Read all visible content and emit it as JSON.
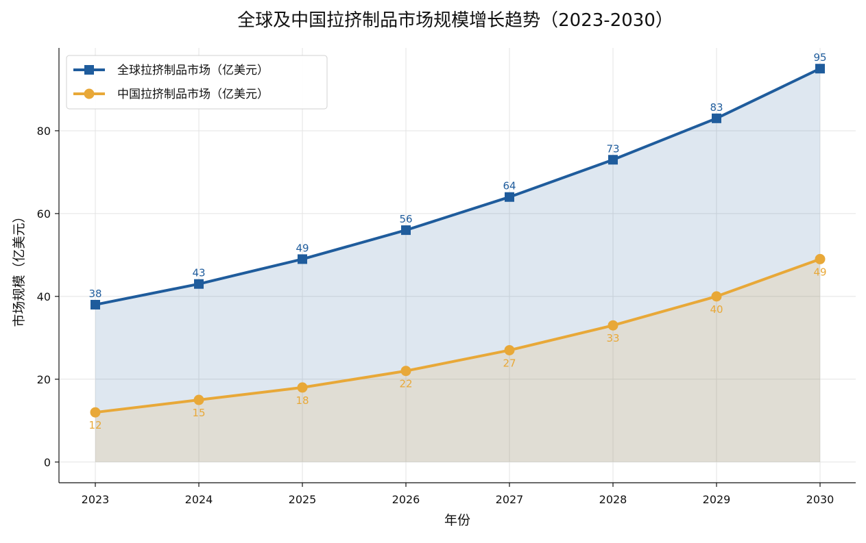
{
  "chart_data": {
    "type": "line",
    "title": "全球及中国拉挤制品市场规模增长趋势（2023-2030）",
    "xlabel": "年份",
    "ylabel": "市场规模（亿美元）",
    "categories": [
      "2023",
      "2024",
      "2025",
      "2026",
      "2027",
      "2028",
      "2029",
      "2030"
    ],
    "y_ticks": [
      "0",
      "20",
      "40",
      "60",
      "80"
    ],
    "ylim": [
      -5,
      100
    ],
    "grid": true,
    "legend_position": "top-left",
    "series": [
      {
        "name": "全球拉挤制品市场（亿美元）",
        "values": [
          38,
          43,
          49,
          56,
          64,
          73,
          83,
          95
        ],
        "labels": [
          "38",
          "43",
          "49",
          "56",
          "64",
          "73",
          "83",
          "95"
        ],
        "color": "#1f5c9c",
        "marker": "square",
        "label_position": "above",
        "filled_area": true
      },
      {
        "name": "中国拉挤制品市场（亿美元）",
        "values": [
          12,
          15,
          18,
          22,
          27,
          33,
          40,
          49
        ],
        "labels": [
          "12",
          "15",
          "18",
          "22",
          "27",
          "33",
          "40",
          "49"
        ],
        "color": "#e8a838",
        "marker": "circle",
        "label_position": "below",
        "filled_area": true
      }
    ]
  }
}
